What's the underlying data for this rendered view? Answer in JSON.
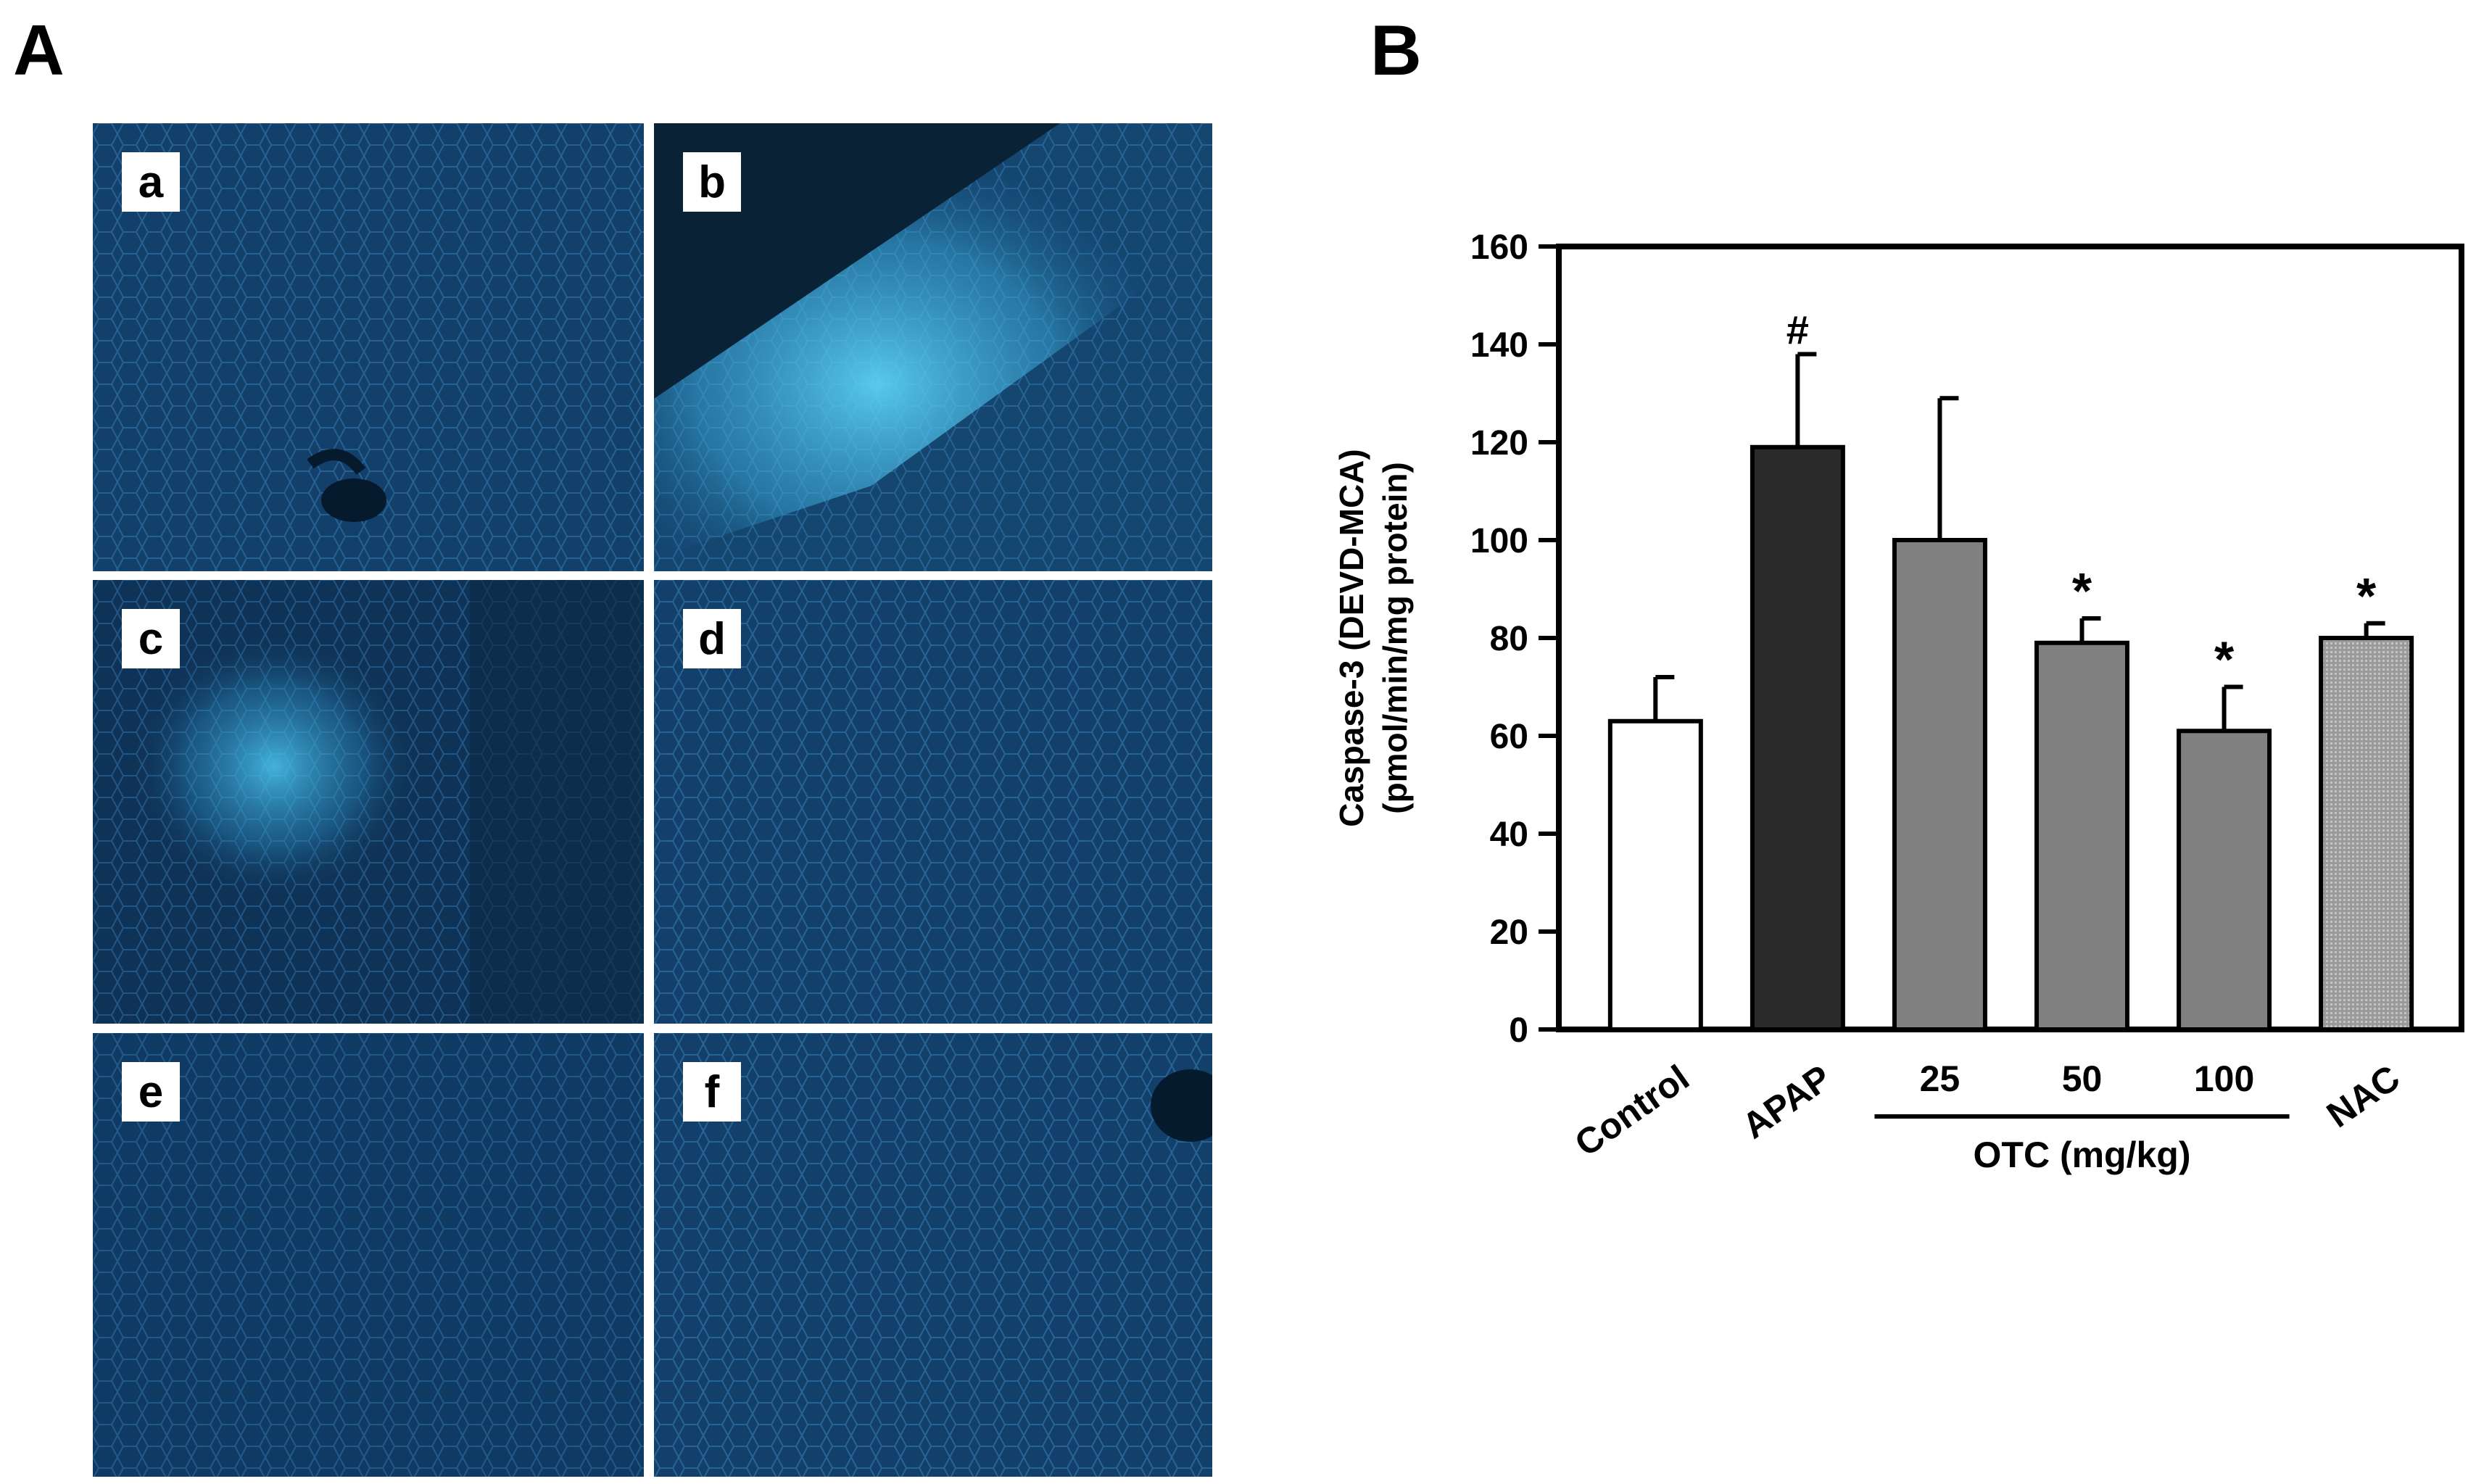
{
  "panel_a": {
    "letter": "A",
    "images": [
      {
        "label": "a"
      },
      {
        "label": "b"
      },
      {
        "label": "c"
      },
      {
        "label": "d"
      },
      {
        "label": "e"
      },
      {
        "label": "f"
      }
    ]
  },
  "panel_b": {
    "letter": "B"
  },
  "colors": {
    "micrograph_base": "#12406b",
    "fluorescence": "#4cc8f0",
    "bar_control": "#ffffff",
    "bar_apap": "#2a2a2a",
    "bar_otc": "#808080",
    "bar_nac": "#a6a6a6"
  },
  "chart_data": {
    "type": "bar",
    "categories": [
      "Control",
      "APAP",
      "25",
      "50",
      "100",
      "NAC"
    ],
    "values": [
      63,
      119,
      100,
      79,
      61,
      80
    ],
    "errors": [
      9,
      19,
      29,
      5,
      9,
      3
    ],
    "annotations": [
      "",
      "#",
      "",
      "*",
      "*",
      "*"
    ],
    "group_label": "OTC (mg/kg)",
    "group_categories": [
      "25",
      "50",
      "100"
    ],
    "ylabel_line1": "Caspase-3 (DEVD-MCA)",
    "ylabel_line2": "(pmol/min/mg protein)",
    "ylim": [
      0,
      160
    ],
    "yticks": [
      "0",
      "20",
      "40",
      "60",
      "80",
      "100",
      "120",
      "140",
      "160"
    ],
    "grid": false,
    "legend": "none"
  }
}
